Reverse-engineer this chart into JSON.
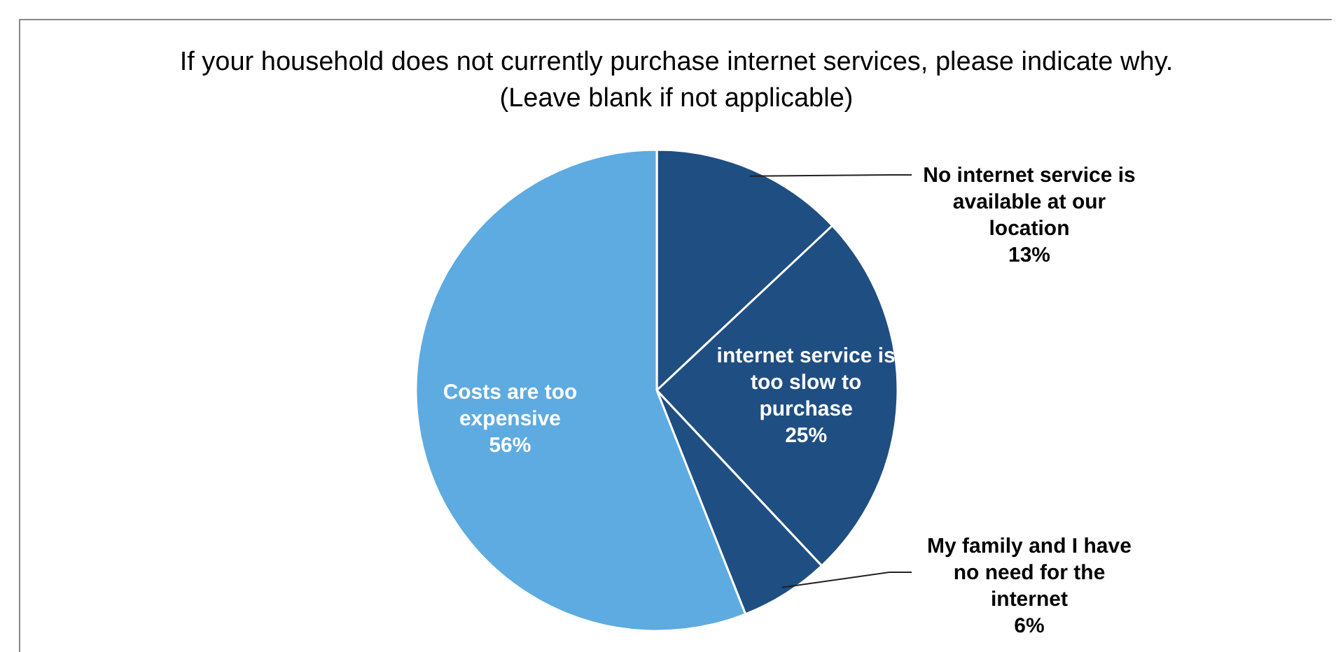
{
  "chart_data": {
    "type": "pie",
    "title": "If your household does not currently purchase internet services, please indicate why. (Leave blank if not applicable)",
    "categories": [
      "No internet service is available at our location",
      "internet service is too slow to purchase",
      "My family and I have no need for the internet",
      "Costs are too expensive"
    ],
    "values": [
      13,
      25,
      6,
      56
    ],
    "colors": [
      "#1f4e82",
      "#1f4e82",
      "#1f4e82",
      "#5dabe0"
    ],
    "value_labels": [
      "13%",
      "25%",
      "6%",
      "56%"
    ]
  }
}
